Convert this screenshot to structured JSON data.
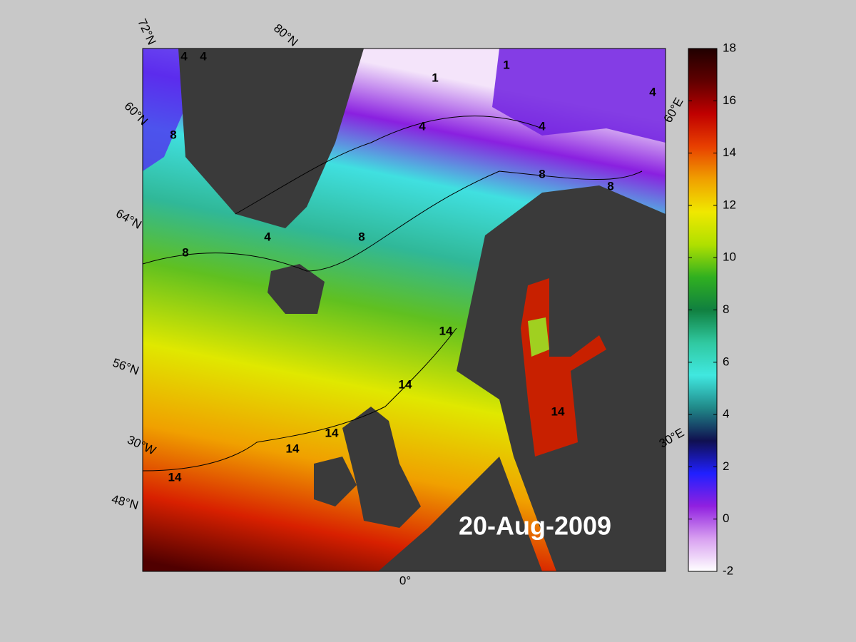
{
  "map": {
    "date": "20-Aug-2009",
    "lat_labels": [
      "72°N",
      "60°N",
      "64°N",
      "56°N",
      "48°N"
    ],
    "lon_labels": [
      "80°N",
      "60°E",
      "30°E",
      "30°W",
      "0°"
    ],
    "contour_labels": [
      4,
      4,
      1,
      1,
      8,
      4,
      4,
      4,
      8,
      8,
      8,
      8,
      4,
      14,
      14,
      14,
      14,
      14,
      14
    ],
    "colorbar": {
      "range": [
        -2,
        18
      ],
      "ticks": [
        -2,
        0,
        2,
        4,
        6,
        8,
        10,
        12,
        14,
        16,
        18
      ],
      "colors": [
        "#ffffff",
        "#d8a0f0",
        "#9020e0",
        "#2020ff",
        "#101050",
        "#208888",
        "#40e8e0",
        "#30c8a0",
        "#108040",
        "#30b020",
        "#b0e000",
        "#f0e800",
        "#f0a000",
        "#e84000",
        "#c00000",
        "#600000",
        "#200000"
      ]
    }
  }
}
